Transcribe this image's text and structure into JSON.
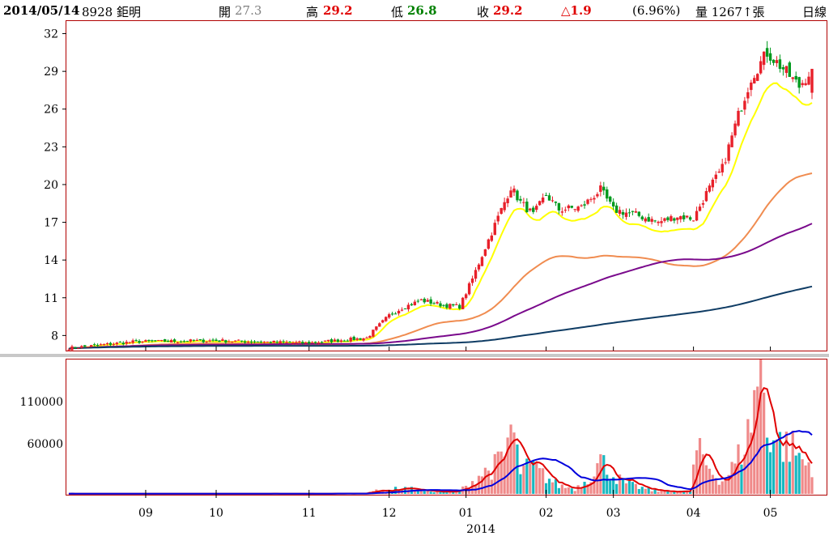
{
  "header": {
    "date": "2014/05/14",
    "stock": "8928 鉅明",
    "open_label": "開",
    "open_value": "27.3",
    "high_label": "高",
    "high_value": "29.2",
    "low_label": "低",
    "low_value": "26.8",
    "close_label": "收",
    "close_value": "29.2",
    "change": "△1.9",
    "change_pct": "(6.96%)",
    "volume": "量 1267↑張",
    "period": "日線"
  },
  "colors": {
    "up": "#e8202a",
    "down": "#009a1e",
    "vol_up": "#f08a8a",
    "vol_down": "#18b8c0",
    "ma5": "#ffff00",
    "ma20": "#f08c50",
    "ma60": "#7a0a8c",
    "ma120": "#0f3c64",
    "vol_ma_red": "#e00000",
    "vol_ma_blue": "#0000dc",
    "frame": "#b00000"
  },
  "chart_data": [
    {
      "type": "candlestick",
      "ylim": [
        6.8,
        33
      ],
      "y_ticks": [
        "32",
        "29",
        "26",
        "23",
        "20",
        "17",
        "14",
        "11",
        "8"
      ],
      "y_tick_values": [
        32,
        29,
        26,
        23,
        20,
        17,
        14,
        11,
        8
      ],
      "x_ticks": [
        "09",
        "10",
        "11",
        "12",
        "01",
        "02",
        "03",
        "04",
        "05"
      ],
      "x_tick_index": [
        24,
        46,
        75,
        100,
        124,
        149,
        170,
        195,
        219
      ],
      "year_label": "2014",
      "close_keypoints": [
        [
          0,
          7.0
        ],
        [
          20,
          7.5
        ],
        [
          45,
          7.6
        ],
        [
          74,
          7.4
        ],
        [
          93,
          7.8
        ],
        [
          96,
          8.6
        ],
        [
          100,
          9.6
        ],
        [
          104,
          10.2
        ],
        [
          110,
          10.8
        ],
        [
          117,
          10.4
        ],
        [
          122,
          10.3
        ],
        [
          126,
          12.5
        ],
        [
          130,
          15.0
        ],
        [
          134,
          17.4
        ],
        [
          138,
          19.8
        ],
        [
          141,
          18.6
        ],
        [
          145,
          17.6
        ],
        [
          149,
          19.2
        ],
        [
          153,
          18.0
        ],
        [
          160,
          18.2
        ],
        [
          166,
          19.6
        ],
        [
          170,
          18.0
        ],
        [
          177,
          17.6
        ],
        [
          184,
          17.0
        ],
        [
          190,
          17.5
        ],
        [
          195,
          17.3
        ],
        [
          199,
          19.3
        ],
        [
          204,
          21.3
        ],
        [
          209,
          25.5
        ],
        [
          213,
          28.5
        ],
        [
          218,
          30.5
        ],
        [
          223,
          29.2
        ],
        [
          228,
          27.8
        ],
        [
          232,
          29.2
        ]
      ],
      "last_candle": {
        "open": 27.3,
        "high": 29.2,
        "low": 26.8,
        "close": 29.2
      },
      "ma_end": {
        "ma5": 26.5,
        "ma20": 20.9,
        "ma60": 16.9,
        "ma120": 11.9
      },
      "series": [
        {
          "name": "MA5",
          "period": 5,
          "color": "#ffff00"
        },
        {
          "name": "MA20",
          "period": 20,
          "color": "#f08c50"
        },
        {
          "name": "MA60",
          "period": 60,
          "color": "#7a0a8c"
        },
        {
          "name": "MA120",
          "period": 120,
          "color": "#0f3c64"
        }
      ]
    },
    {
      "type": "bar",
      "ylim": [
        0,
        160000
      ],
      "y_ticks": [
        "110000",
        "60000"
      ],
      "y_tick_values": [
        110000,
        60000
      ],
      "volume_keypoints": [
        [
          0,
          300
        ],
        [
          40,
          200
        ],
        [
          74,
          300
        ],
        [
          92,
          500
        ],
        [
          94,
          3500
        ],
        [
          100,
          4000
        ],
        [
          104,
          8000
        ],
        [
          110,
          4000
        ],
        [
          120,
          2000
        ],
        [
          124,
          8000
        ],
        [
          128,
          22000
        ],
        [
          132,
          30000
        ],
        [
          136,
          44000
        ],
        [
          138,
          80000
        ],
        [
          141,
          28000
        ],
        [
          145,
          32000
        ],
        [
          149,
          20000
        ],
        [
          153,
          10000
        ],
        [
          158,
          6000
        ],
        [
          162,
          18000
        ],
        [
          166,
          40000
        ],
        [
          170,
          22000
        ],
        [
          174,
          12000
        ],
        [
          178,
          8000
        ],
        [
          182,
          4000
        ],
        [
          188,
          3000
        ],
        [
          194,
          3000
        ],
        [
          196,
          52000
        ],
        [
          200,
          30000
        ],
        [
          204,
          15000
        ],
        [
          208,
          35000
        ],
        [
          212,
          70000
        ],
        [
          216,
          160000
        ],
        [
          218,
          80000
        ],
        [
          222,
          60000
        ],
        [
          226,
          55000
        ],
        [
          230,
          35000
        ],
        [
          232,
          36000
        ]
      ],
      "series": [
        {
          "name": "short",
          "color": "#e00000"
        },
        {
          "name": "long",
          "color": "#0000dc"
        }
      ]
    }
  ]
}
